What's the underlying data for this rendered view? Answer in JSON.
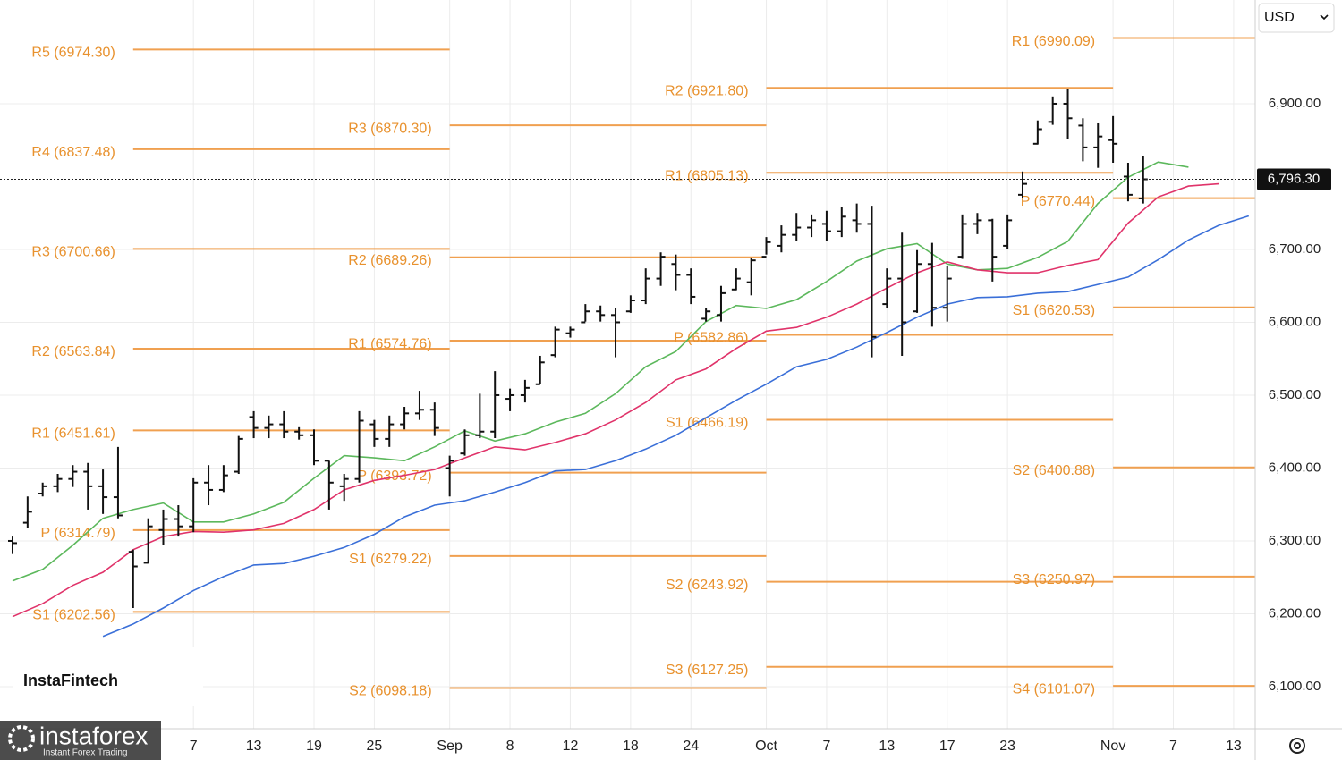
{
  "chart_data": {
    "type": "ohlc",
    "xlim": [
      -0.83,
      82.43
    ],
    "ylim": [
      6042.3,
      7042.3
    ],
    "grid": true,
    "bar_color": "#111111",
    "pivot_color": "#f0a050",
    "xticks": [
      {
        "value": 12,
        "label": "7"
      },
      {
        "value": 16,
        "label": "13"
      },
      {
        "value": 20,
        "label": "19"
      },
      {
        "value": 24,
        "label": "25"
      },
      {
        "value": 29,
        "label": "Sep"
      },
      {
        "value": 33,
        "label": "8"
      },
      {
        "value": 37,
        "label": "12"
      },
      {
        "value": 41,
        "label": "18"
      },
      {
        "value": 45,
        "label": "24"
      },
      {
        "value": 50,
        "label": "Oct"
      },
      {
        "value": 54,
        "label": "7"
      },
      {
        "value": 58,
        "label": "13"
      },
      {
        "value": 62,
        "label": "17"
      },
      {
        "value": 66,
        "label": "23"
      },
      {
        "value": 73,
        "label": "Nov"
      },
      {
        "value": 77,
        "label": "7"
      },
      {
        "value": 81,
        "label": "13"
      }
    ],
    "yticks": [
      {
        "value": 6100,
        "label": "6,100.00"
      },
      {
        "value": 6200,
        "label": "6,200.00"
      },
      {
        "value": 6300,
        "label": "6,300.00"
      },
      {
        "value": 6400,
        "label": "6,400.00"
      },
      {
        "value": 6500,
        "label": "6,500.00"
      },
      {
        "value": 6600,
        "label": "6,600.00"
      },
      {
        "value": 6700,
        "label": "6,700.00"
      },
      {
        "value": 6900,
        "label": "6,900.00"
      }
    ],
    "current_price": {
      "value": 6796.3,
      "label": "6,796.30"
    },
    "x": [
      0,
      1,
      2,
      3,
      4,
      5,
      6,
      7,
      8,
      9,
      10,
      11,
      12,
      13,
      14,
      15,
      16,
      17,
      18,
      19,
      20,
      21,
      22,
      23,
      24,
      25,
      26,
      27,
      28,
      29,
      30,
      31,
      32,
      33,
      34,
      35,
      36,
      37,
      38,
      39,
      40,
      41,
      42,
      43,
      44,
      45,
      46,
      47,
      48,
      49,
      50,
      51,
      52,
      53,
      54,
      55,
      56,
      57,
      58,
      59,
      60,
      61,
      62,
      63,
      64,
      65,
      66,
      67,
      68,
      69,
      70,
      71,
      72,
      73,
      74,
      75
    ],
    "open": [
      6300,
      6325,
      6365,
      6375,
      6385,
      6395,
      6375,
      6360,
      6285,
      6270,
      6315,
      6330,
      6320,
      6380,
      6370,
      6395,
      6470,
      6455,
      6460,
      6450,
      6445,
      6410,
      6375,
      6385,
      6460,
      6440,
      6460,
      6475,
      6480,
      6400,
      6420,
      6445,
      6450,
      6495,
      6500,
      6515,
      6555,
      6585,
      6600,
      6615,
      6610,
      6615,
      6630,
      6660,
      6680,
      6665,
      6605,
      6610,
      6645,
      6655,
      6690,
      6705,
      6720,
      6730,
      6735,
      6725,
      6740,
      6735,
      6625,
      6660,
      6615,
      6680,
      6620,
      6690,
      6735,
      6740,
      6705,
      6775,
      6845,
      6875,
      6900,
      6870,
      6840,
      6850,
      6800,
      6770
    ],
    "high": [
      6306,
      6361,
      6380,
      6392,
      6404,
      6407,
      6398,
      6429,
      6288,
      6331,
      6343,
      6349,
      6386,
      6404,
      6404,
      6444,
      6478,
      6472,
      6478,
      6456,
      6453,
      6410,
      6392,
      6478,
      6466,
      6472,
      6484,
      6506,
      6490,
      6417,
      6453,
      6502,
      6533,
      6509,
      6521,
      6554,
      6594,
      6594,
      6625,
      6623,
      6619,
      6637,
      6674,
      6696,
      6693,
      6674,
      6619,
      6650,
      6674,
      6689,
      6717,
      6733,
      6750,
      6748,
      6753,
      6758,
      6763,
      6760,
      6674,
      6723,
      6699,
      6709,
      6677,
      6748,
      6750,
      6742,
      6748,
      6807,
      6877,
      6910,
      6920,
      6880,
      6873,
      6883,
      6819,
      6828
    ],
    "low": [
      6282,
      6318,
      6361,
      6367,
      6374,
      6343,
      6337,
      6331,
      6208,
      6269,
      6294,
      6306,
      6312,
      6349,
      6367,
      6392,
      6441,
      6441,
      6441,
      6439,
      6404,
      6343,
      6355,
      6380,
      6429,
      6429,
      6453,
      6466,
      6444,
      6361,
      6417,
      6441,
      6441,
      6478,
      6490,
      6515,
      6552,
      6579,
      6601,
      6601,
      6552,
      6613,
      6625,
      6650,
      6644,
      6625,
      6601,
      6601,
      6644,
      6637,
      6693,
      6696,
      6711,
      6717,
      6711,
      6717,
      6723,
      6552,
      6619,
      6554,
      6613,
      6594,
      6601,
      6687,
      6721,
      6656,
      6701,
      6770,
      6844,
      6871,
      6852,
      6821,
      6812,
      6819,
      6766,
      6763
    ],
    "close": [
      6297,
      6340,
      6375,
      6385,
      6395,
      6375,
      6360,
      6335,
      6265,
      6320,
      6330,
      6320,
      6380,
      6370,
      6390,
      6440,
      6455,
      6460,
      6450,
      6445,
      6410,
      6380,
      6385,
      6465,
      6440,
      6460,
      6475,
      6480,
      6455,
      6410,
      6445,
      6450,
      6500,
      6500,
      6510,
      6545,
      6590,
      6590,
      6615,
      6610,
      6600,
      6630,
      6660,
      6690,
      6665,
      6635,
      6615,
      6640,
      6660,
      6685,
      6710,
      6720,
      6730,
      6740,
      6725,
      6745,
      6735,
      6580,
      6660,
      6600,
      6680,
      6620,
      6660,
      6735,
      6740,
      6690,
      6740,
      6790,
      6865,
      6900,
      6880,
      6840,
      6855,
      6845,
      6775,
      6796.3
    ],
    "lines": [
      {
        "color": "#5cb85c",
        "x": [
          0,
          2,
          4,
          6,
          8,
          10,
          12,
          14,
          16,
          18,
          20,
          22,
          24,
          26,
          28,
          30,
          32,
          34,
          36,
          38,
          40,
          42,
          44,
          46,
          48,
          50,
          52,
          54,
          56,
          58,
          60,
          62,
          64,
          66,
          68,
          70,
          72,
          74,
          76,
          78
        ],
        "values": [
          6245,
          6261,
          6294,
          6331,
          6343,
          6352,
          6326,
          6326,
          6337,
          6353,
          6386,
          6417,
          6414,
          6410,
          6429,
          6451,
          6437,
          6447,
          6463,
          6475,
          6502,
          6539,
          6560,
          6601,
          6623,
          6619,
          6631,
          6656,
          6684,
          6701,
          6708,
          6680,
          6672,
          6674,
          6689,
          6711,
          6763,
          6799,
          6820,
          6813
        ]
      },
      {
        "color": "#e0336a",
        "x": [
          0,
          2,
          4,
          6,
          8,
          10,
          12,
          14,
          16,
          18,
          20,
          22,
          24,
          26,
          28,
          30,
          32,
          34,
          36,
          38,
          40,
          42,
          44,
          46,
          48,
          50,
          52,
          54,
          56,
          58,
          60,
          62,
          64,
          66,
          68,
          70,
          72,
          74,
          76,
          78,
          80
        ],
        "values": [
          6196,
          6214,
          6239,
          6257,
          6288,
          6306,
          6313,
          6312,
          6315,
          6324,
          6343,
          6370,
          6383,
          6390,
          6398,
          6414,
          6429,
          6425,
          6435,
          6447,
          6466,
          6490,
          6521,
          6536,
          6564,
          6588,
          6593,
          6607,
          6625,
          6647,
          6668,
          6683,
          6672,
          6668,
          6668,
          6678,
          6686,
          6736,
          6772,
          6787,
          6790
        ]
      },
      {
        "color": "#3a6fd8",
        "x": [
          6,
          8,
          10,
          12,
          14,
          16,
          18,
          20,
          22,
          24,
          26,
          28,
          30,
          32,
          34,
          36,
          38,
          40,
          42,
          44,
          46,
          48,
          50,
          52,
          54,
          56,
          58,
          60,
          62,
          64,
          66,
          68,
          70,
          72,
          74,
          76,
          78,
          80,
          82
        ],
        "values": [
          6169,
          6186,
          6208,
          6232,
          6251,
          6267,
          6269,
          6279,
          6291,
          6309,
          6333,
          6349,
          6355,
          6367,
          6380,
          6396,
          6398,
          6410,
          6426,
          6445,
          6469,
          6493,
          6515,
          6539,
          6549,
          6566,
          6586,
          6607,
          6625,
          6634,
          6635,
          6640,
          6642,
          6652,
          6662,
          6686,
          6713,
          6733,
          6746
        ]
      }
    ],
    "pivots": [
      {
        "start": 8,
        "levels": [
          {
            "label": "R5 (6974.30)",
            "value": 6974.3
          },
          {
            "label": "R4 (6837.48)",
            "value": 6837.48
          },
          {
            "label": "R3 (6700.66)",
            "value": 6700.66
          },
          {
            "label": "R2 (6563.84)",
            "value": 6563.84
          },
          {
            "label": "R1 (6451.61)",
            "value": 6451.61
          },
          {
            "label": "P (6314.79)",
            "value": 6314.79
          },
          {
            "label": "S1 (6202.56)",
            "value": 6202.56
          }
        ]
      },
      {
        "start": 29,
        "levels": [
          {
            "label": "R3 (6870.30)",
            "value": 6870.3
          },
          {
            "label": "R2 (6689.26)",
            "value": 6689.26
          },
          {
            "label": "R1 (6574.76)",
            "value": 6574.76
          },
          {
            "label": "P (6393.72)",
            "value": 6393.72
          },
          {
            "label": "S1 (6279.22)",
            "value": 6279.22
          },
          {
            "label": "S2 (6098.18)",
            "value": 6098.18
          }
        ]
      },
      {
        "start": 50,
        "levels": [
          {
            "label": "R2 (6921.80)",
            "value": 6921.8
          },
          {
            "label": "R1 (6805.13)",
            "value": 6805.13
          },
          {
            "label": "P (6582.86)",
            "value": 6582.86
          },
          {
            "label": "S1 (6466.19)",
            "value": 6466.19
          },
          {
            "label": "S2 (6243.92)",
            "value": 6243.92
          },
          {
            "label": "S3 (6127.25)",
            "value": 6127.25
          }
        ]
      },
      {
        "start": 73,
        "levels": [
          {
            "label": "R1 (6990.09)",
            "value": 6990.09
          },
          {
            "label": "P (6770.44)",
            "value": 6770.44
          },
          {
            "label": "S1 (6620.53)",
            "value": 6620.53
          },
          {
            "label": "S2 (6400.88)",
            "value": 6400.88
          },
          {
            "label": "S3 (6250.97)",
            "value": 6250.97
          },
          {
            "label": "S4 (6101.07)",
            "value": 6101.07
          }
        ]
      }
    ]
  },
  "ui": {
    "currency": "USD",
    "watermark": "InstaFintech",
    "brand": "instaforex",
    "brand_tagline": "Instant Forex Trading"
  }
}
